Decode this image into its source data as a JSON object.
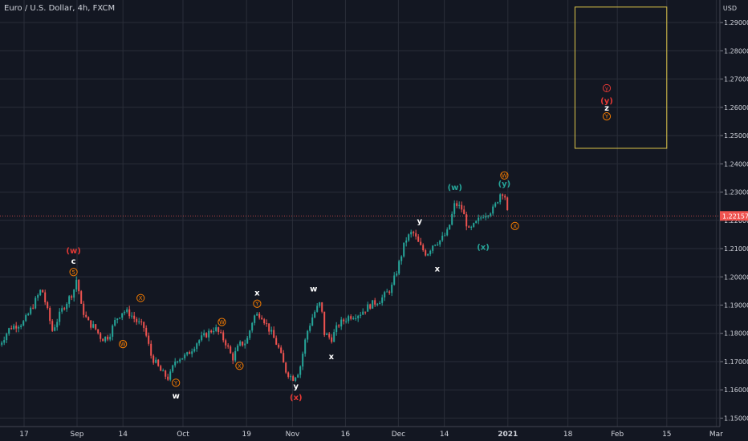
{
  "header": {
    "symbol_title": "Euro / U.S. Dollar, 4h, FXCM",
    "currency": "USD"
  },
  "colors": {
    "background": "#131722",
    "grid": "#2a2e39",
    "up": "#26a69a",
    "down": "#ef5350",
    "price_tag": "#ef5350",
    "axis_text": "#d1d4dc",
    "box": "#e0c84a",
    "label_orange": "#f57c00",
    "label_red": "#e53935",
    "label_teal": "#26a69a",
    "label_white": "#ffffff"
  },
  "chart_data": {
    "type": "candlestick",
    "y_axis": {
      "range": [
        1.147,
        1.298
      ],
      "ticks": [
        1.15,
        1.16,
        1.17,
        1.18,
        1.19,
        1.2,
        1.21,
        1.22,
        1.23,
        1.24,
        1.25,
        1.26,
        1.27,
        1.28,
        1.29
      ],
      "tick_labels": [
        "1.15000",
        "1.16000",
        "1.17000",
        "1.18000",
        "1.19000",
        "1.20000",
        "1.21000",
        "1.22000",
        "1.23000",
        "1.24000",
        "1.25000",
        "1.26000",
        "1.27000",
        "1.28000",
        "1.29000"
      ]
    },
    "x_axis": {
      "labels": [
        "17",
        "Sep",
        "14",
        "Oct",
        "19",
        "Nov",
        "16",
        "Dec",
        "14",
        "2021",
        "18",
        "Feb",
        "15",
        "Mar"
      ],
      "dates": [
        "2020-08-17",
        "2020-09-01",
        "2020-09-14",
        "2020-10-01",
        "2020-10-19",
        "2020-11-01",
        "2020-11-16",
        "2020-12-01",
        "2020-12-14",
        "2021-01-01",
        "2021-01-18",
        "2021-02-01",
        "2021-02-15",
        "2021-03-01"
      ]
    },
    "grid": true,
    "current_price": {
      "value": 1.22157,
      "label": "1.22157"
    },
    "price_path": [
      [
        "2020-08-10",
        1.176
      ],
      [
        "2020-08-13",
        1.182
      ],
      [
        "2020-08-17",
        1.184
      ],
      [
        "2020-08-20",
        1.191
      ],
      [
        "2020-08-22",
        1.196
      ],
      [
        "2020-08-25",
        1.181
      ],
      [
        "2020-08-28",
        1.189
      ],
      [
        "2020-08-31",
        1.195
      ],
      [
        "2020-09-01",
        1.2
      ],
      [
        "2020-09-02",
        1.19
      ],
      [
        "2020-09-04",
        1.184
      ],
      [
        "2020-09-06",
        1.182
      ],
      [
        "2020-09-08",
        1.178
      ],
      [
        "2020-09-10",
        1.179
      ],
      [
        "2020-09-12",
        1.185
      ],
      [
        "2020-09-14",
        1.188
      ],
      [
        "2020-09-16",
        1.187
      ],
      [
        "2020-09-18",
        1.184
      ],
      [
        "2020-09-20",
        1.182
      ],
      [
        "2020-09-22",
        1.172
      ],
      [
        "2020-09-25",
        1.166
      ],
      [
        "2020-09-27",
        1.164
      ],
      [
        "2020-09-29",
        1.171
      ],
      [
        "2020-10-02",
        1.172
      ],
      [
        "2020-10-05",
        1.177
      ],
      [
        "2020-10-08",
        1.18
      ],
      [
        "2020-10-10",
        1.182
      ],
      [
        "2020-10-13",
        1.177
      ],
      [
        "2020-10-15",
        1.171
      ],
      [
        "2020-10-17",
        1.176
      ],
      [
        "2020-10-19",
        1.177
      ],
      [
        "2020-10-21",
        1.186
      ],
      [
        "2020-10-23",
        1.187
      ],
      [
        "2020-10-26",
        1.18
      ],
      [
        "2020-10-28",
        1.175
      ],
      [
        "2020-10-30",
        1.167
      ],
      [
        "2020-11-01",
        1.164
      ],
      [
        "2020-11-03",
        1.167
      ],
      [
        "2020-11-05",
        1.18
      ],
      [
        "2020-11-07",
        1.187
      ],
      [
        "2020-11-09",
        1.191
      ],
      [
        "2020-11-10",
        1.18
      ],
      [
        "2020-11-12",
        1.178
      ],
      [
        "2020-11-14",
        1.183
      ],
      [
        "2020-11-17",
        1.186
      ],
      [
        "2020-11-20",
        1.187
      ],
      [
        "2020-11-23",
        1.19
      ],
      [
        "2020-11-26",
        1.192
      ],
      [
        "2020-11-29",
        1.196
      ],
      [
        "2020-12-01",
        1.204
      ],
      [
        "2020-12-03",
        1.213
      ],
      [
        "2020-12-05",
        1.216
      ],
      [
        "2020-12-07",
        1.211
      ],
      [
        "2020-12-09",
        1.208
      ],
      [
        "2020-12-11",
        1.212
      ],
      [
        "2020-12-13",
        1.213
      ],
      [
        "2020-12-15",
        1.216
      ],
      [
        "2020-12-17",
        1.226
      ],
      [
        "2020-12-19",
        1.224
      ],
      [
        "2020-12-21",
        1.216
      ],
      [
        "2020-12-23",
        1.219
      ],
      [
        "2020-12-25",
        1.222
      ],
      [
        "2020-12-28",
        1.224
      ],
      [
        "2020-12-30",
        1.23
      ],
      [
        "2020-12-31",
        1.23
      ],
      [
        "2021-01-01",
        1.2215
      ]
    ],
    "annotations": [
      {
        "text": "(w)",
        "date": "2020-08-31",
        "y": 1.2095,
        "color": "red"
      },
      {
        "text": "c",
        "date": "2020-08-31",
        "y": 1.2058,
        "color": "white"
      },
      {
        "text": "5",
        "date": "2020-08-31",
        "y": 1.2017,
        "color": "orange",
        "circled": true
      },
      {
        "text": "X",
        "date": "2020-09-19",
        "y": 1.1925,
        "color": "orange",
        "circled": true
      },
      {
        "text": "W",
        "date": "2020-09-14",
        "y": 1.1762,
        "color": "orange",
        "circled": true
      },
      {
        "text": "Y",
        "date": "2020-09-29",
        "y": 1.1625,
        "color": "orange",
        "circled": true
      },
      {
        "text": "w",
        "date": "2020-09-29",
        "y": 1.158,
        "color": "white"
      },
      {
        "text": "W",
        "date": "2020-10-12",
        "y": 1.184,
        "color": "orange",
        "circled": true
      },
      {
        "text": "X",
        "date": "2020-10-17",
        "y": 1.1685,
        "color": "orange",
        "circled": true
      },
      {
        "text": "x",
        "date": "2020-10-22",
        "y": 1.1945,
        "color": "white"
      },
      {
        "text": "Y",
        "date": "2020-10-22",
        "y": 1.1905,
        "color": "orange",
        "circled": true
      },
      {
        "text": "w",
        "date": "2020-11-07",
        "y": 1.196,
        "color": "white"
      },
      {
        "text": "x",
        "date": "2020-11-12",
        "y": 1.172,
        "color": "white"
      },
      {
        "text": "y",
        "date": "2020-11-02",
        "y": 1.1615,
        "color": "white"
      },
      {
        "text": "(x)",
        "date": "2020-11-02",
        "y": 1.1575,
        "color": "red"
      },
      {
        "text": "y",
        "date": "2020-12-07",
        "y": 1.22,
        "color": "white"
      },
      {
        "text": "x",
        "date": "2020-12-12",
        "y": 1.203,
        "color": "white"
      },
      {
        "text": "(w)",
        "date": "2020-12-17",
        "y": 1.2318,
        "color": "teal"
      },
      {
        "text": "(x)",
        "date": "2020-12-25",
        "y": 1.2107,
        "color": "teal"
      },
      {
        "text": "W",
        "date": "2020-12-31",
        "y": 1.2359,
        "color": "orange",
        "circled": true
      },
      {
        "text": "(y)",
        "date": "2020-12-31",
        "y": 1.2332,
        "color": "teal"
      },
      {
        "text": "X",
        "date": "2021-01-03",
        "y": 1.218,
        "color": "orange",
        "circled": true
      },
      {
        "text": "y",
        "date": "2021-01-29",
        "y": 1.2668,
        "color": "red",
        "circled": true
      },
      {
        "text": "(y)",
        "date": "2021-01-29",
        "y": 1.2625,
        "color": "red"
      },
      {
        "text": "z",
        "date": "2021-01-29",
        "y": 1.26,
        "color": "white"
      },
      {
        "text": "Y",
        "date": "2021-01-29",
        "y": 1.2568,
        "color": "orange",
        "circled": true
      }
    ],
    "target_box": {
      "date_from": "2021-01-20",
      "date_to": "2021-02-15",
      "price_from": 1.2455,
      "price_to": 1.2955
    }
  }
}
